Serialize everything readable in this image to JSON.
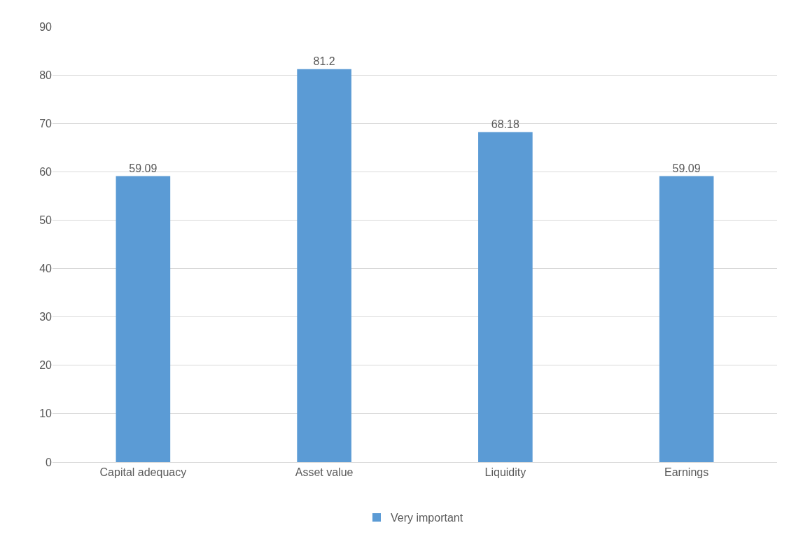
{
  "chart_data": {
    "type": "bar",
    "categories": [
      "Capital adequacy",
      "Asset value",
      "Liquidity",
      "Earnings"
    ],
    "series": [
      {
        "name": "Very important",
        "color": "#5b9bd5",
        "values": [
          59.09,
          81.2,
          68.18,
          59.09
        ]
      }
    ],
    "ylim": [
      0,
      90
    ],
    "yticks": [
      0,
      10,
      20,
      30,
      40,
      50,
      60,
      70,
      80,
      90
    ],
    "grid": "y",
    "legend": "bottom",
    "data_labels": true
  }
}
